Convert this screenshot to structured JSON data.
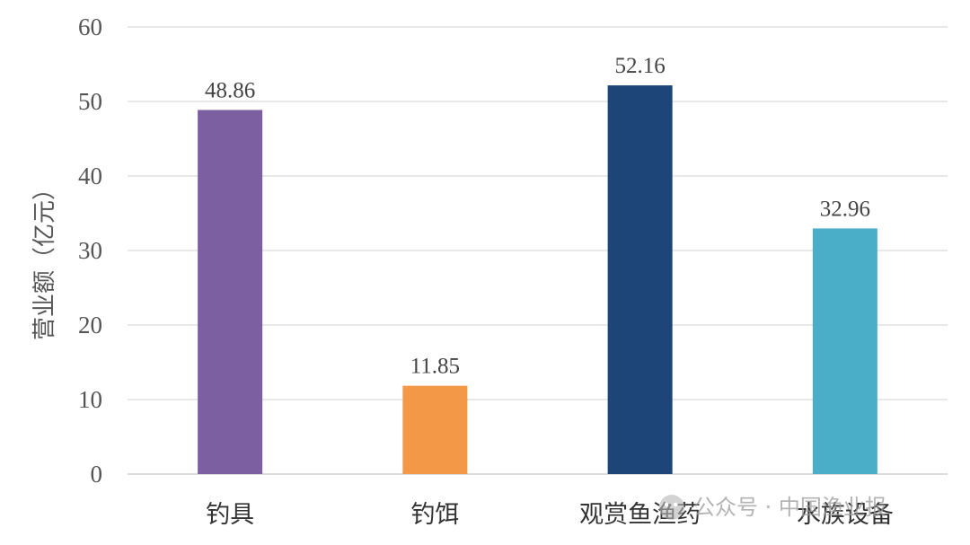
{
  "chart_data": {
    "type": "bar",
    "categories": [
      "钓具",
      "钓饵",
      "观赏鱼渔药",
      "水族设备"
    ],
    "values": [
      48.86,
      11.85,
      52.16,
      32.96
    ],
    "value_labels": [
      "48.86",
      "11.85",
      "52.16",
      "32.96"
    ],
    "colors": [
      "#7b5fa0",
      "#f39847",
      "#1e4577",
      "#4aaec8"
    ],
    "title": "",
    "xlabel": "",
    "ylabel": "营业额（亿元）",
    "ylim": [
      0,
      60
    ],
    "yticks": [
      0,
      10,
      20,
      30,
      40,
      50,
      60
    ],
    "ytick_labels": [
      "0",
      "10",
      "20",
      "30",
      "40",
      "50",
      "60"
    ],
    "grid": true,
    "legend": false
  },
  "watermark": {
    "text": "公众号 · 中国渔业报"
  }
}
